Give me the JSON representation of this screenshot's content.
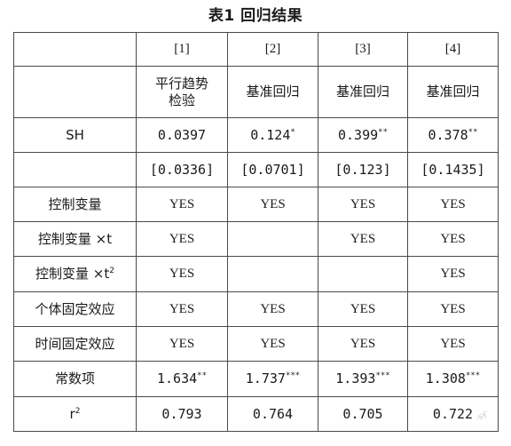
{
  "title": "表1  回归结果",
  "columns": [
    "[1]",
    "[2]",
    "[3]",
    "[4]"
  ],
  "model_row": [
    "平行趋势\n检验",
    "基准回归",
    "基准回归",
    "基准回归"
  ],
  "rows": [
    {
      "label": "SH",
      "cells": [
        {
          "v": "0.0397",
          "s": ""
        },
        {
          "v": "0.124",
          "s": "*"
        },
        {
          "v": "0.399",
          "s": "**"
        },
        {
          "v": "0.378",
          "s": "**"
        }
      ]
    },
    {
      "label": "",
      "cells": [
        {
          "v": "[0.0336]",
          "s": ""
        },
        {
          "v": "[0.0701]",
          "s": ""
        },
        {
          "v": "[0.123]",
          "s": ""
        },
        {
          "v": "[0.1435]",
          "s": ""
        }
      ]
    },
    {
      "label": "控制变量",
      "cells": [
        {
          "v": "YES",
          "s": ""
        },
        {
          "v": "YES",
          "s": ""
        },
        {
          "v": "YES",
          "s": ""
        },
        {
          "v": "YES",
          "s": ""
        }
      ]
    },
    {
      "label": "控制变量 ×t",
      "cells": [
        {
          "v": "YES",
          "s": ""
        },
        {
          "v": "",
          "s": ""
        },
        {
          "v": "YES",
          "s": ""
        },
        {
          "v": "YES",
          "s": ""
        }
      ]
    },
    {
      "label": "控制变量 ×t",
      "label_sup": "2",
      "cells": [
        {
          "v": "YES",
          "s": ""
        },
        {
          "v": "",
          "s": ""
        },
        {
          "v": "",
          "s": ""
        },
        {
          "v": "YES",
          "s": ""
        }
      ]
    },
    {
      "label": "个体固定效应",
      "cells": [
        {
          "v": "YES",
          "s": ""
        },
        {
          "v": "YES",
          "s": ""
        },
        {
          "v": "YES",
          "s": ""
        },
        {
          "v": "YES",
          "s": ""
        }
      ]
    },
    {
      "label": "时间固定效应",
      "cells": [
        {
          "v": "YES",
          "s": ""
        },
        {
          "v": "YES",
          "s": ""
        },
        {
          "v": "YES",
          "s": ""
        },
        {
          "v": "YES",
          "s": ""
        }
      ]
    },
    {
      "label": "常数项",
      "cells": [
        {
          "v": "1.634",
          "s": "**"
        },
        {
          "v": "1.737",
          "s": "***"
        },
        {
          "v": "1.393",
          "s": "***"
        },
        {
          "v": "1.308",
          "s": "***"
        }
      ]
    },
    {
      "label": "r",
      "label_sup": "2",
      "cells": [
        {
          "v": "0.793",
          "s": ""
        },
        {
          "v": "0.764",
          "s": ""
        },
        {
          "v": "0.705",
          "s": ""
        },
        {
          "v": "0.722",
          "s": ""
        }
      ]
    }
  ]
}
